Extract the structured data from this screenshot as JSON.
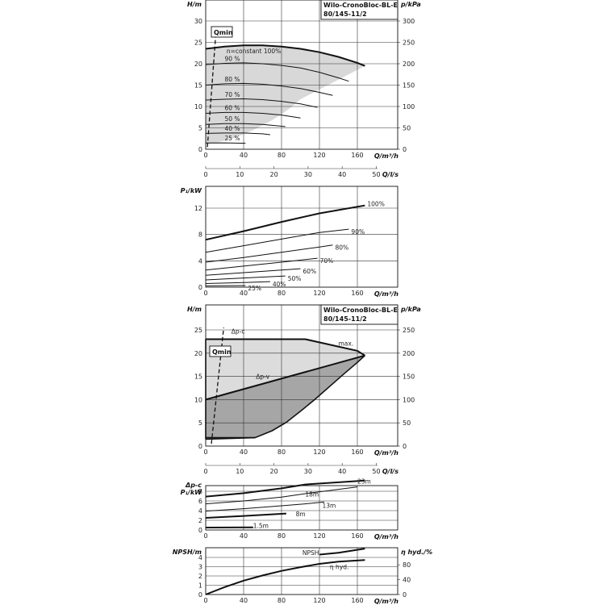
{
  "chart_data": [
    {
      "id": "h1",
      "type": "line",
      "title": "Wilo-CronoBloc-BL-E 80/145-11/2",
      "title_lines": [
        "Wilo-CronoBloc-BL-E",
        "80/145-11/2"
      ],
      "ylabel": "H/m",
      "ylabel_right": "p/kPa",
      "xlabel": "Q/m³/h",
      "xlabel2": "Q/l/s",
      "xlim": [
        0,
        200
      ],
      "ylim": [
        0,
        33
      ],
      "xticks": [
        "0",
        "40",
        "80",
        "120",
        "160"
      ],
      "x2ticks": [
        "0",
        "10",
        "20",
        "30",
        "40",
        "50"
      ],
      "yticks": [
        "0",
        "5",
        "10",
        "15",
        "20",
        "25",
        "30"
      ],
      "yticks_right": [
        "0",
        "50",
        "100",
        "150",
        "200",
        "250",
        "300"
      ],
      "qmin_label": "Qmin",
      "qmin_line": {
        "x": [
          1.8,
          11
        ],
        "y": [
          0.5,
          28
        ]
      },
      "area_lower": {
        "x": [
          0,
          4,
          10,
          20,
          30,
          40,
          50,
          60,
          70,
          80,
          90,
          100
        ],
        "y": [
          1.2,
          1.3,
          1.5,
          2.0,
          2.7,
          3.5,
          4.5,
          5.6,
          6.8,
          8.2,
          9.8,
          11.7
        ]
      },
      "series": [
        {
          "name": "n=constant 100%",
          "x": [
            0,
            20,
            40,
            60,
            80,
            100,
            120,
            140,
            160,
            168
          ],
          "y": [
            23.5,
            24.0,
            24.3,
            24.3,
            24.0,
            23.5,
            22.7,
            21.6,
            20.2,
            19.5
          ]
        },
        {
          "name": "90 %",
          "x": [
            0,
            20,
            40,
            60,
            80,
            100,
            120,
            140,
            151
          ],
          "y": [
            19.8,
            20.1,
            20.2,
            20.0,
            19.6,
            19.0,
            18.0,
            16.7,
            15.9
          ]
        },
        {
          "name": "80 %",
          "x": [
            0,
            20,
            40,
            60,
            80,
            100,
            120,
            134
          ],
          "y": [
            15.0,
            15.3,
            15.4,
            15.2,
            14.8,
            14.2,
            13.3,
            12.6
          ]
        },
        {
          "name": "70 %",
          "x": [
            0,
            20,
            40,
            60,
            80,
            100,
            118
          ],
          "y": [
            11.5,
            11.7,
            11.8,
            11.6,
            11.2,
            10.6,
            9.8
          ]
        },
        {
          "name": "60 %",
          "x": [
            0,
            20,
            40,
            60,
            80,
            100
          ],
          "y": [
            8.4,
            8.6,
            8.6,
            8.4,
            8.0,
            7.3
          ]
        },
        {
          "name": "50 %",
          "x": [
            0,
            20,
            40,
            60,
            84
          ],
          "y": [
            5.8,
            6.0,
            6.0,
            5.8,
            5.3
          ]
        },
        {
          "name": "40 %",
          "x": [
            0,
            20,
            40,
            60,
            68
          ],
          "y": [
            3.7,
            3.8,
            3.8,
            3.6,
            3.4
          ]
        },
        {
          "name": "25 %",
          "x": [
            0,
            20,
            42
          ],
          "y": [
            1.45,
            1.5,
            1.4
          ]
        }
      ]
    },
    {
      "id": "p1",
      "type": "line",
      "ylabel": "P₁/kW",
      "xlabel": "Q/m³/h",
      "xlim": [
        0,
        200
      ],
      "ylim": [
        0,
        14.5
      ],
      "xticks": [
        "0",
        "40",
        "80",
        "120",
        "160"
      ],
      "yticks": [
        "0",
        "4",
        "8",
        "12"
      ],
      "series": [
        {
          "name": "100%",
          "x": [
            0,
            40,
            80,
            120,
            168
          ],
          "y": [
            7.2,
            8.5,
            9.9,
            11.2,
            12.4
          ]
        },
        {
          "name": "90%",
          "x": [
            0,
            40,
            80,
            120,
            151
          ],
          "y": [
            5.3,
            6.3,
            7.3,
            8.3,
            8.8
          ]
        },
        {
          "name": "80%",
          "x": [
            0,
            40,
            80,
            120,
            134
          ],
          "y": [
            3.8,
            4.5,
            5.3,
            6.1,
            6.4
          ]
        },
        {
          "name": "70%",
          "x": [
            0,
            40,
            80,
            118
          ],
          "y": [
            2.6,
            3.2,
            3.8,
            4.4
          ]
        },
        {
          "name": "60%",
          "x": [
            0,
            40,
            80,
            100
          ],
          "y": [
            1.8,
            2.2,
            2.6,
            2.8
          ]
        },
        {
          "name": "50%",
          "x": [
            0,
            40,
            84
          ],
          "y": [
            1.1,
            1.4,
            1.7
          ]
        },
        {
          "name": "40%",
          "x": [
            0,
            40,
            68
          ],
          "y": [
            0.55,
            0.7,
            0.85
          ]
        },
        {
          "name": "25%",
          "x": [
            0,
            42
          ],
          "y": [
            0.2,
            0.25
          ]
        }
      ]
    },
    {
      "id": "h2",
      "type": "area",
      "title": "Wilo-CronoBloc-BL-E 80/145-11/2",
      "title_lines": [
        "Wilo-CronoBloc-BL-E",
        "80/145-11/2"
      ],
      "ylabel": "H/m",
      "ylabel_right": "p/kPa",
      "xlabel": "Q/m³/h",
      "xlabel2": "Q/l/s",
      "xlim": [
        0,
        200
      ],
      "ylim": [
        0,
        28
      ],
      "xticks": [
        "0",
        "40",
        "80",
        "120",
        "160"
      ],
      "x2ticks": [
        "0",
        "10",
        "20",
        "30",
        "40",
        "50"
      ],
      "yticks": [
        "0",
        "5",
        "10",
        "15",
        "20",
        "25"
      ],
      "yticks_right": [
        "0",
        "50",
        "100",
        "150",
        "200",
        "250"
      ],
      "qmin_label": "Qmin",
      "qmin_line": {
        "x": [
          6,
          19
        ],
        "y": [
          0.5,
          25.5
        ]
      },
      "labels": [
        "Δp-c",
        "Δp-v",
        "max."
      ],
      "dpc_line": {
        "x": [
          0,
          105,
          160,
          168
        ],
        "y": [
          23,
          23,
          20.5,
          19.5
        ]
      },
      "dpv_line": {
        "x": [
          0,
          168
        ],
        "y": [
          10,
          19.5
        ]
      },
      "lower_boundary": {
        "x": [
          0,
          52,
          70,
          85,
          100,
          115,
          130,
          145,
          160,
          168
        ],
        "y": [
          1.8,
          1.8,
          3.3,
          5.1,
          7.5,
          10.0,
          12.7,
          15.4,
          18.0,
          19.5
        ]
      },
      "min_line": {
        "x": [
          0,
          52
        ],
        "y": [
          1.5,
          1.8
        ]
      }
    },
    {
      "id": "p2",
      "type": "line",
      "ylabel_lines": [
        "Δp-c",
        "P₁/kW"
      ],
      "xlabel": "Q/m³/h",
      "xlim": [
        0,
        200
      ],
      "ylim": [
        0,
        10.5
      ],
      "xticks": [
        "0",
        "40",
        "80",
        "120",
        "160"
      ],
      "yticks": [
        "0",
        "2",
        "4",
        "6",
        "8"
      ],
      "series": [
        {
          "name": "23m",
          "x": [
            0,
            40,
            80,
            105,
            168
          ],
          "y": [
            6.9,
            7.6,
            8.6,
            9.4,
            10.2
          ]
        },
        {
          "name": "18m",
          "x": [
            0,
            40,
            80,
            105,
            160
          ],
          "y": [
            5.4,
            6.0,
            6.8,
            7.5,
            8.9
          ]
        },
        {
          "name": "13m",
          "x": [
            0,
            40,
            80,
            105,
            125
          ],
          "y": [
            3.9,
            4.4,
            5.0,
            5.4,
            5.8
          ]
        },
        {
          "name": "8m",
          "x": [
            0,
            40,
            85
          ],
          "y": [
            2.5,
            2.9,
            3.4
          ]
        },
        {
          "name": "1.5m",
          "x": [
            0,
            50
          ],
          "y": [
            0.5,
            0.55
          ]
        }
      ]
    },
    {
      "id": "n1",
      "type": "line",
      "ylabel": "NPSH/m",
      "ylabel_right": "η hyd./%",
      "xlabel": "Q/m³/h",
      "xlim": [
        0,
        200
      ],
      "ylim": [
        0,
        5
      ],
      "xticks": [
        "0",
        "40",
        "80",
        "120",
        "160"
      ],
      "yticks": [
        "0",
        "1",
        "2",
        "3",
        "4"
      ],
      "yticks_right": [
        "0",
        "40",
        "80"
      ],
      "series": [
        {
          "name": "NPSH",
          "x": [
            120,
            140,
            168
          ],
          "y": [
            4.3,
            4.5,
            4.95
          ]
        },
        {
          "name": "η hyd.",
          "x": [
            0,
            20,
            40,
            60,
            80,
            100,
            120,
            140,
            168
          ],
          "y": [
            0.0,
            0.8,
            1.5,
            2.05,
            2.55,
            2.95,
            3.3,
            3.55,
            3.72
          ]
        }
      ]
    }
  ]
}
